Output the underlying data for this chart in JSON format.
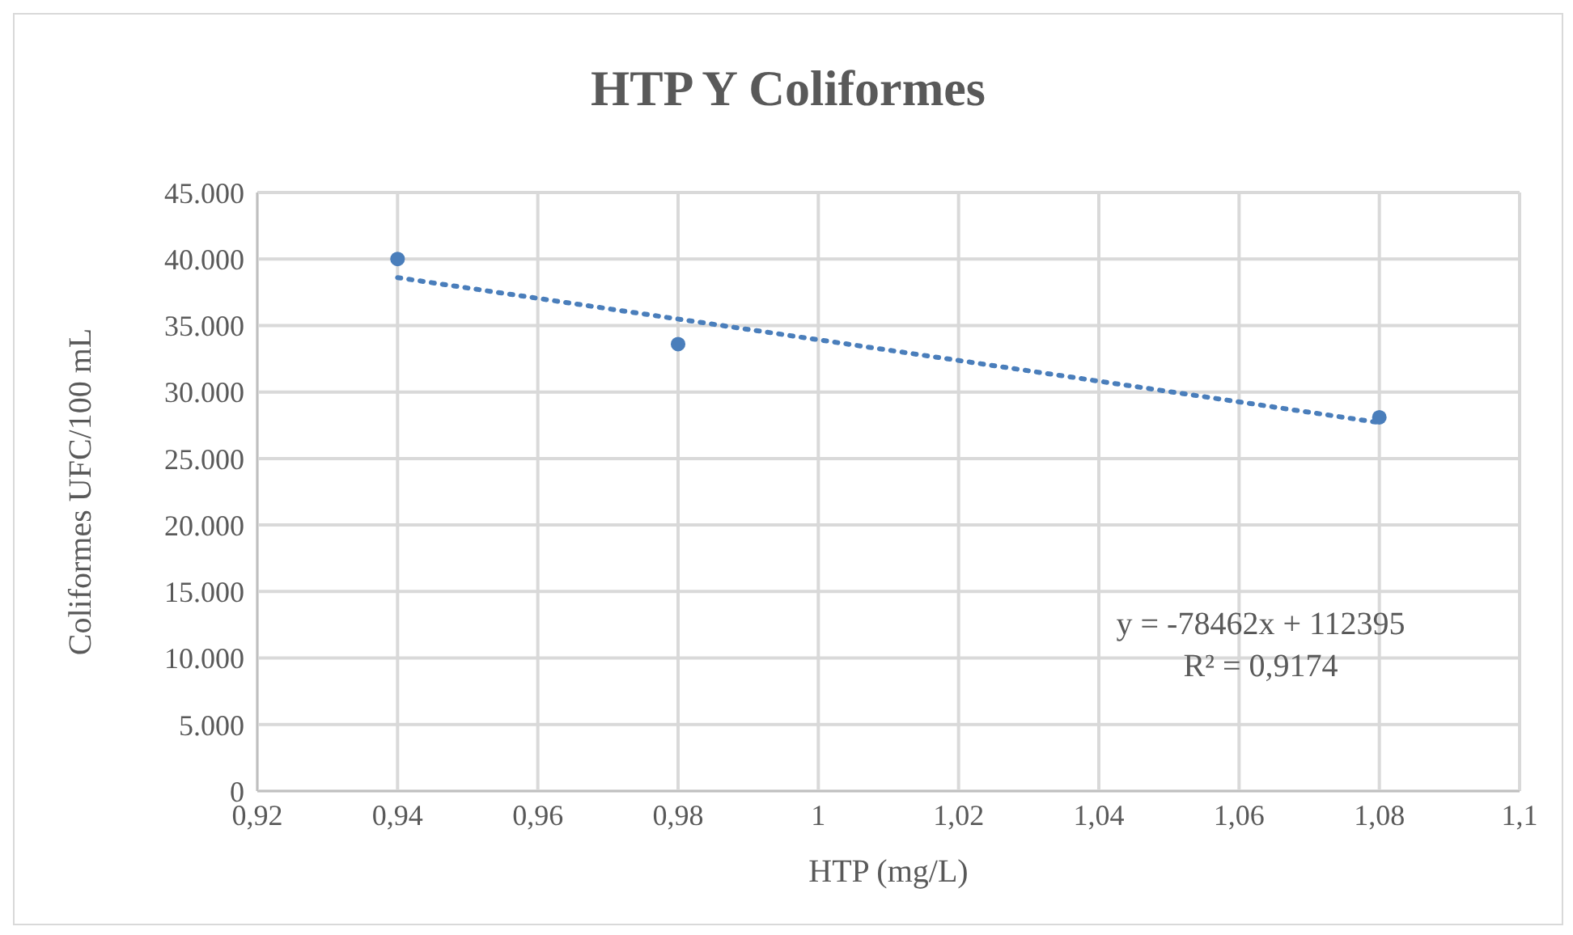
{
  "chart_data": {
    "type": "scatter",
    "title": "HTP Y Coliformes",
    "xlabel": "HTP (mg/L)",
    "ylabel": "Coliformes UFC/100 mL",
    "series": [
      {
        "color": "#4a7ebb",
        "marker": "circle",
        "x": [
          0.94,
          0.98,
          1.08
        ],
        "values": [
          40000,
          33600,
          28100
        ]
      },
      {
        "type": "line",
        "color": "#4a7ebb",
        "line_style": "dotted",
        "marker": "none",
        "x": [
          0.94,
          1.08
        ],
        "values": [
          38600,
          27700
        ]
      }
    ],
    "xlim": [
      0.92,
      1.1
    ],
    "xticks": [
      {
        "value": 0.92,
        "label": "0,92"
      },
      {
        "value": 0.94,
        "label": "0,94"
      },
      {
        "value": 0.96,
        "label": "0,96"
      },
      {
        "value": 0.98,
        "label": "0,98"
      },
      {
        "value": 1,
        "label": "1"
      },
      {
        "value": 1.02,
        "label": "1,02"
      },
      {
        "value": 1.04,
        "label": "1,04"
      },
      {
        "value": 1.06,
        "label": "1,06"
      },
      {
        "value": 1.08,
        "label": "1,08"
      },
      {
        "value": 1.1,
        "label": "1,1"
      }
    ],
    "ylim": [
      0,
      45000
    ],
    "yticks": [
      {
        "value": 0,
        "label": "0"
      },
      {
        "value": 5000,
        "label": "5.000"
      },
      {
        "value": 10000,
        "label": "10.000"
      },
      {
        "value": 15000,
        "label": "15.000"
      },
      {
        "value": 20000,
        "label": "20.000"
      },
      {
        "value": 25000,
        "label": "25.000"
      },
      {
        "value": 30000,
        "label": "30.000"
      },
      {
        "value": 35000,
        "label": "35.000"
      },
      {
        "value": 40000,
        "label": "40.000"
      },
      {
        "value": 45000,
        "label": "45.000"
      }
    ],
    "grid": true,
    "annotations": [
      "y = -78462x + 112395",
      "R² = 0,9174"
    ]
  }
}
